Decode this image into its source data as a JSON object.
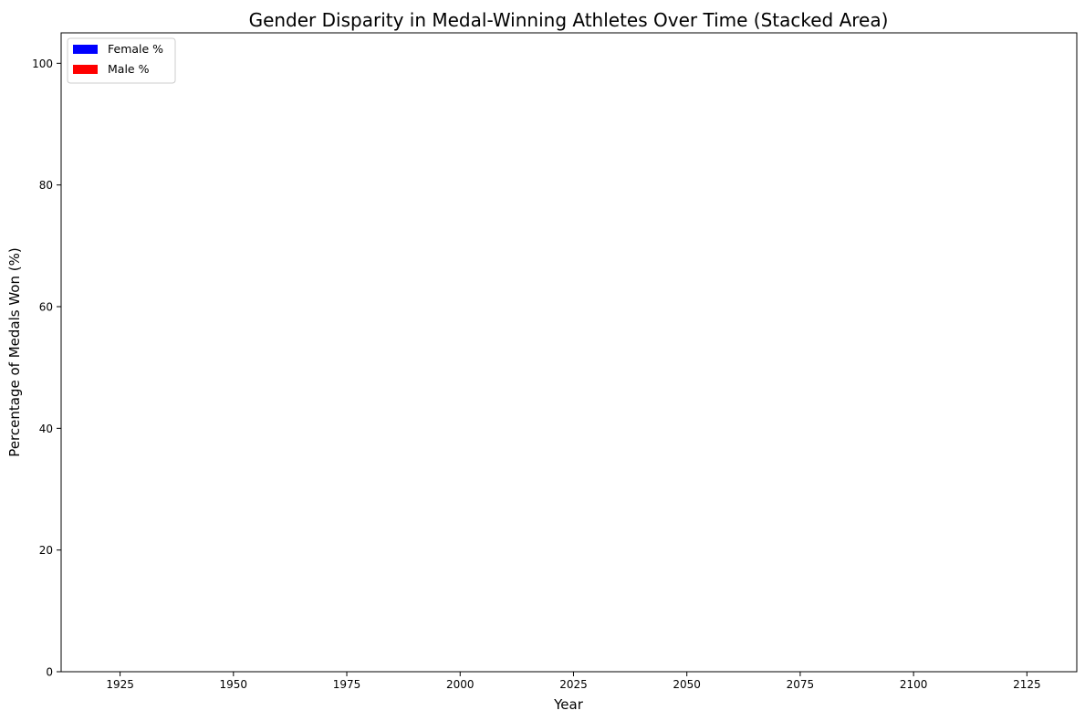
{
  "chart_data": {
    "type": "area",
    "stacked": true,
    "title": "Gender Disparity in Medal-Winning Athletes Over Time (Stacked Area)",
    "xlabel": "Year",
    "ylabel": "Percentage of Medals Won (%)",
    "xlim": [
      1912,
      2136
    ],
    "ylim": [
      0,
      105
    ],
    "x_ticks": [
      1925,
      1950,
      1975,
      2000,
      2025,
      2050,
      2075,
      2100,
      2125
    ],
    "y_ticks": [
      0,
      20,
      40,
      60,
      80,
      100
    ],
    "grid": false,
    "legend_position": "top-left",
    "series": [
      {
        "name": "Female %",
        "color": "#0000ff",
        "x": [],
        "values": []
      },
      {
        "name": "Male %",
        "color": "#ff0000",
        "x": [],
        "values": []
      }
    ]
  }
}
